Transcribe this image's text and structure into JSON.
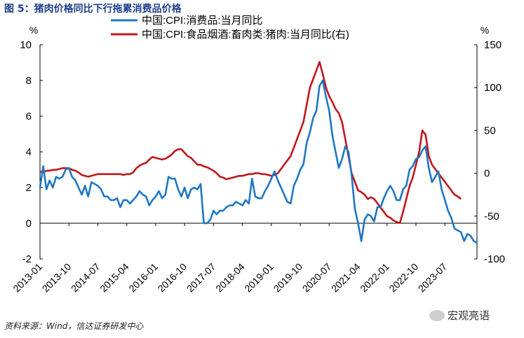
{
  "title": "图 5：猪肉价格同比下行拖累消费品价格",
  "source": "资料来源：Wind，信达证券研发中心",
  "watermark": "宏观亮语",
  "chart_data": {
    "type": "line",
    "left_unit": "%",
    "right_unit": "%",
    "ylim_left": [
      -2,
      10
    ],
    "ylim_right": [
      -100,
      150
    ],
    "yticks_left": [
      "-2",
      "0",
      "2",
      "4",
      "6",
      "8",
      "10"
    ],
    "yticks_right": [
      "-100",
      "-50",
      "0",
      "50",
      "100",
      "150"
    ],
    "xlabels": [
      "2013-01",
      "2013-10",
      "2014-07",
      "2015-04",
      "2016-01",
      "2016-10",
      "2017-07",
      "2018-04",
      "2019-01",
      "2019-10",
      "2020-07",
      "2021-04",
      "2022-01",
      "2022-10",
      "2023-07"
    ],
    "x_start": "2013-01",
    "x_end": "2023-10",
    "series": [
      {
        "name": "中国:CPI:消费品:当月同比",
        "axis": "left",
        "color": "#1f77c4",
        "values": [
          2.0,
          3.2,
          1.9,
          2.4,
          2.0,
          2.6,
          2.5,
          2.6,
          3.0,
          3.1,
          2.6,
          2.4,
          2.0,
          1.6,
          2.1,
          1.5,
          2.3,
          2.2,
          2.1,
          1.9,
          1.5,
          1.5,
          1.3,
          1.3,
          1.4,
          0.9,
          1.3,
          1.3,
          1.1,
          1.3,
          1.5,
          1.8,
          1.6,
          1.5,
          1.0,
          1.3,
          1.5,
          1.8,
          1.4,
          1.6,
          2.6,
          2.5,
          2.5,
          1.9,
          1.5,
          2.0,
          1.4,
          1.9,
          2.0,
          1.9,
          2.2,
          0.0,
          0.0,
          0.2,
          0.7,
          0.5,
          0.7,
          0.7,
          0.9,
          1.0,
          1.0,
          1.2,
          1.1,
          1.0,
          1.3,
          1.1,
          2.5,
          1.5,
          1.4,
          1.4,
          1.8,
          2.1,
          2.5,
          2.9,
          2.4,
          2.0,
          1.6,
          1.2,
          1.1,
          2.1,
          2.5,
          3.0,
          3.3,
          4.5,
          5.1,
          5.9,
          6.3,
          7.7,
          8.0,
          7.1,
          6.3,
          4.9,
          4.0,
          3.1,
          3.6,
          4.3,
          4.0,
          2.7,
          0.8,
          0.0,
          -1.0,
          0.2,
          0.5,
          0.4,
          0.1,
          0.9,
          0.9,
          1.4,
          1.8,
          2.1,
          1.8,
          1.3,
          1.3,
          1.9,
          2.1,
          3.0,
          3.2,
          3.6,
          3.7,
          4.1,
          4.3,
          3.1,
          2.3,
          2.6,
          2.9,
          1.9,
          1.3,
          0.7,
          0.3,
          -0.3,
          -0.4,
          -0.5,
          -1.0,
          -0.6,
          -0.7,
          -1.0,
          -1.1
        ]
      },
      {
        "name": "中国:CPI:食品烟酒:畜肉类:猪肉:当月同比(右)",
        "axis": "right",
        "color": "#c0161c",
        "values": [
          2,
          1,
          3,
          3,
          4,
          4,
          5,
          6,
          6,
          6,
          4,
          3,
          1,
          -2,
          -3,
          -4,
          -3,
          -2,
          -1,
          -1,
          -1,
          -1,
          -1,
          -1,
          -1,
          -1,
          -2,
          -1,
          -1,
          1,
          6,
          9,
          11,
          12,
          16,
          19,
          18,
          17,
          16,
          17,
          19,
          22,
          26,
          28,
          28,
          24,
          20,
          18,
          14,
          10,
          10,
          8,
          7,
          5,
          3,
          0,
          -4,
          -5,
          -7,
          -6,
          -5,
          -4,
          -3,
          -3,
          -2,
          -1,
          -1,
          0,
          0,
          -1,
          -1,
          -2,
          -3,
          -2,
          0,
          5,
          10,
          15,
          20,
          30,
          40,
          50,
          60,
          80,
          100,
          110,
          120,
          130,
          116,
          100,
          90,
          83,
          75,
          70,
          60,
          40,
          20,
          0,
          -10,
          -20,
          -22,
          -25,
          -30,
          -28,
          -30,
          -35,
          -40,
          -45,
          -50,
          -52,
          -55,
          -57,
          -58,
          -45,
          -30,
          -15,
          -5,
          10,
          25,
          50,
          45,
          20,
          10,
          5,
          0,
          -5,
          -10,
          -15,
          -20,
          -25,
          -27,
          -30
        ]
      }
    ]
  }
}
